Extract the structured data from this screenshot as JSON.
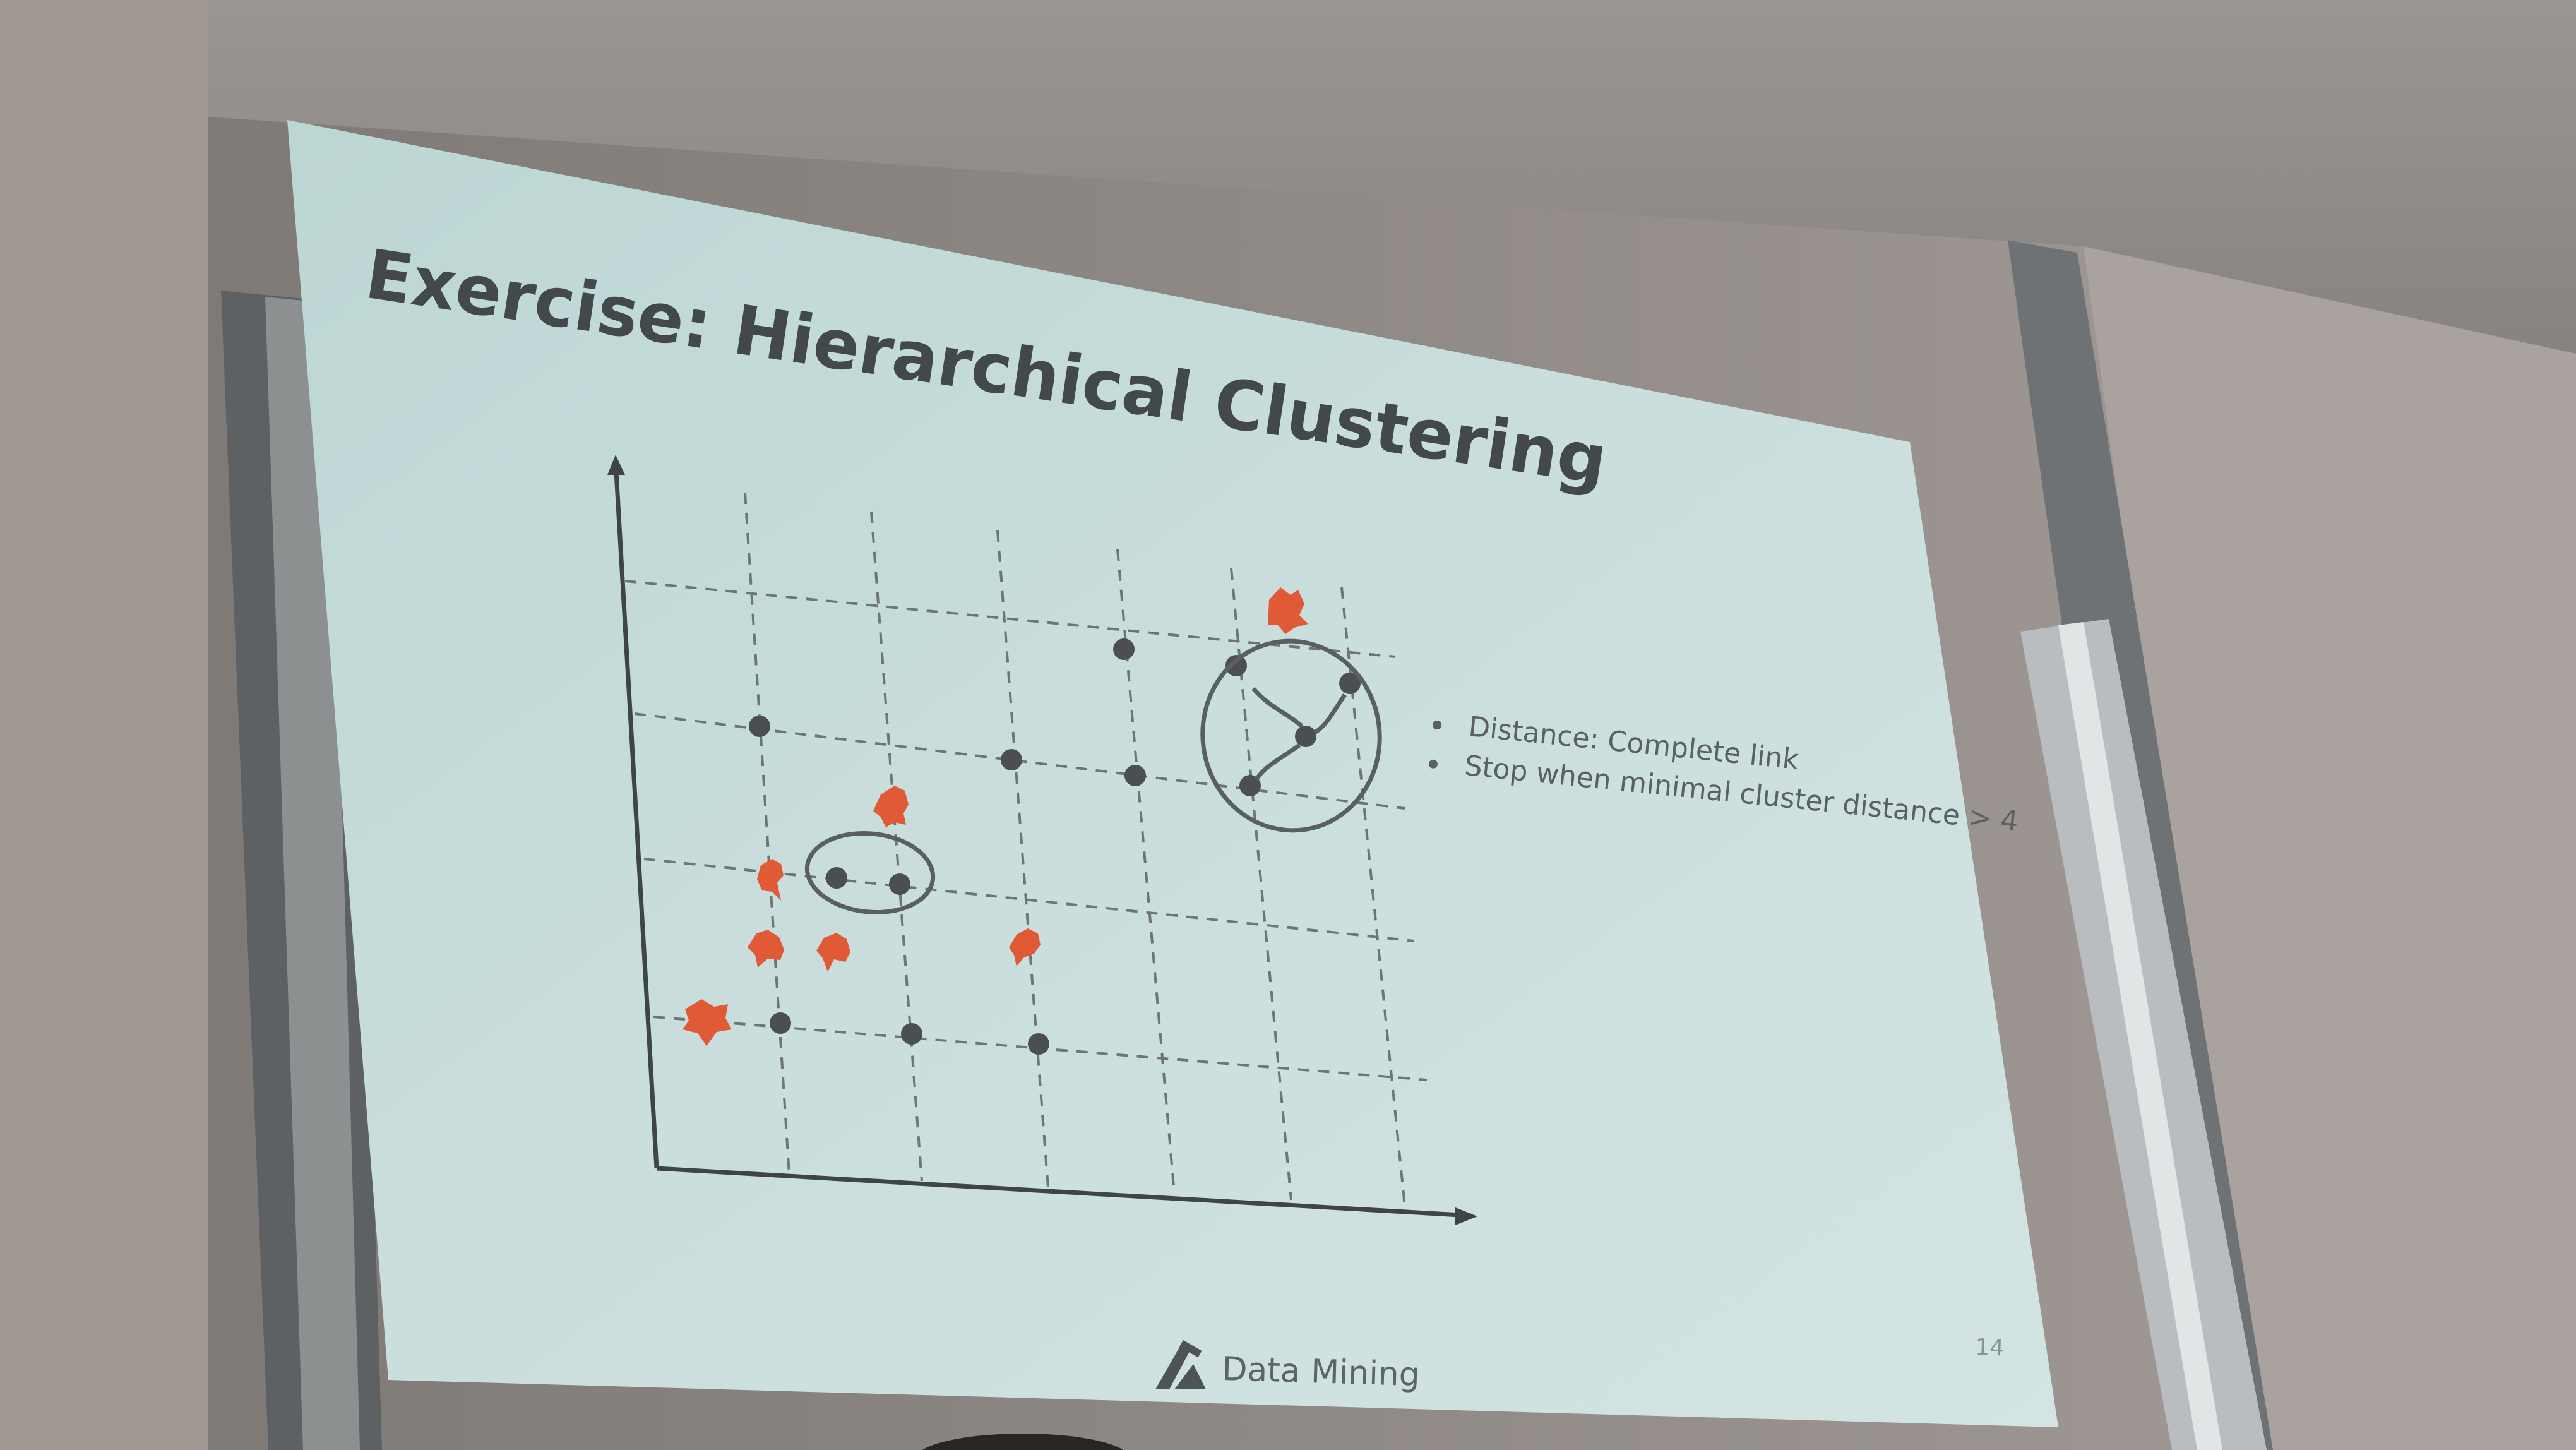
{
  "slide": {
    "title": "Exercise: Hierarchical Clustering",
    "bullets": [
      "Distance: Complete link",
      "Stop when minimal cluster distance > 4"
    ],
    "footer_label": "Data Mining",
    "page_number": "14"
  },
  "colors": {
    "slide_background": "#c9dcdb",
    "data_point": "#4b4f52",
    "annotation_red": "#e05a36",
    "wall": "#8a8480"
  },
  "icons": {
    "footer_logo": "data-mining-logo-icon"
  }
}
